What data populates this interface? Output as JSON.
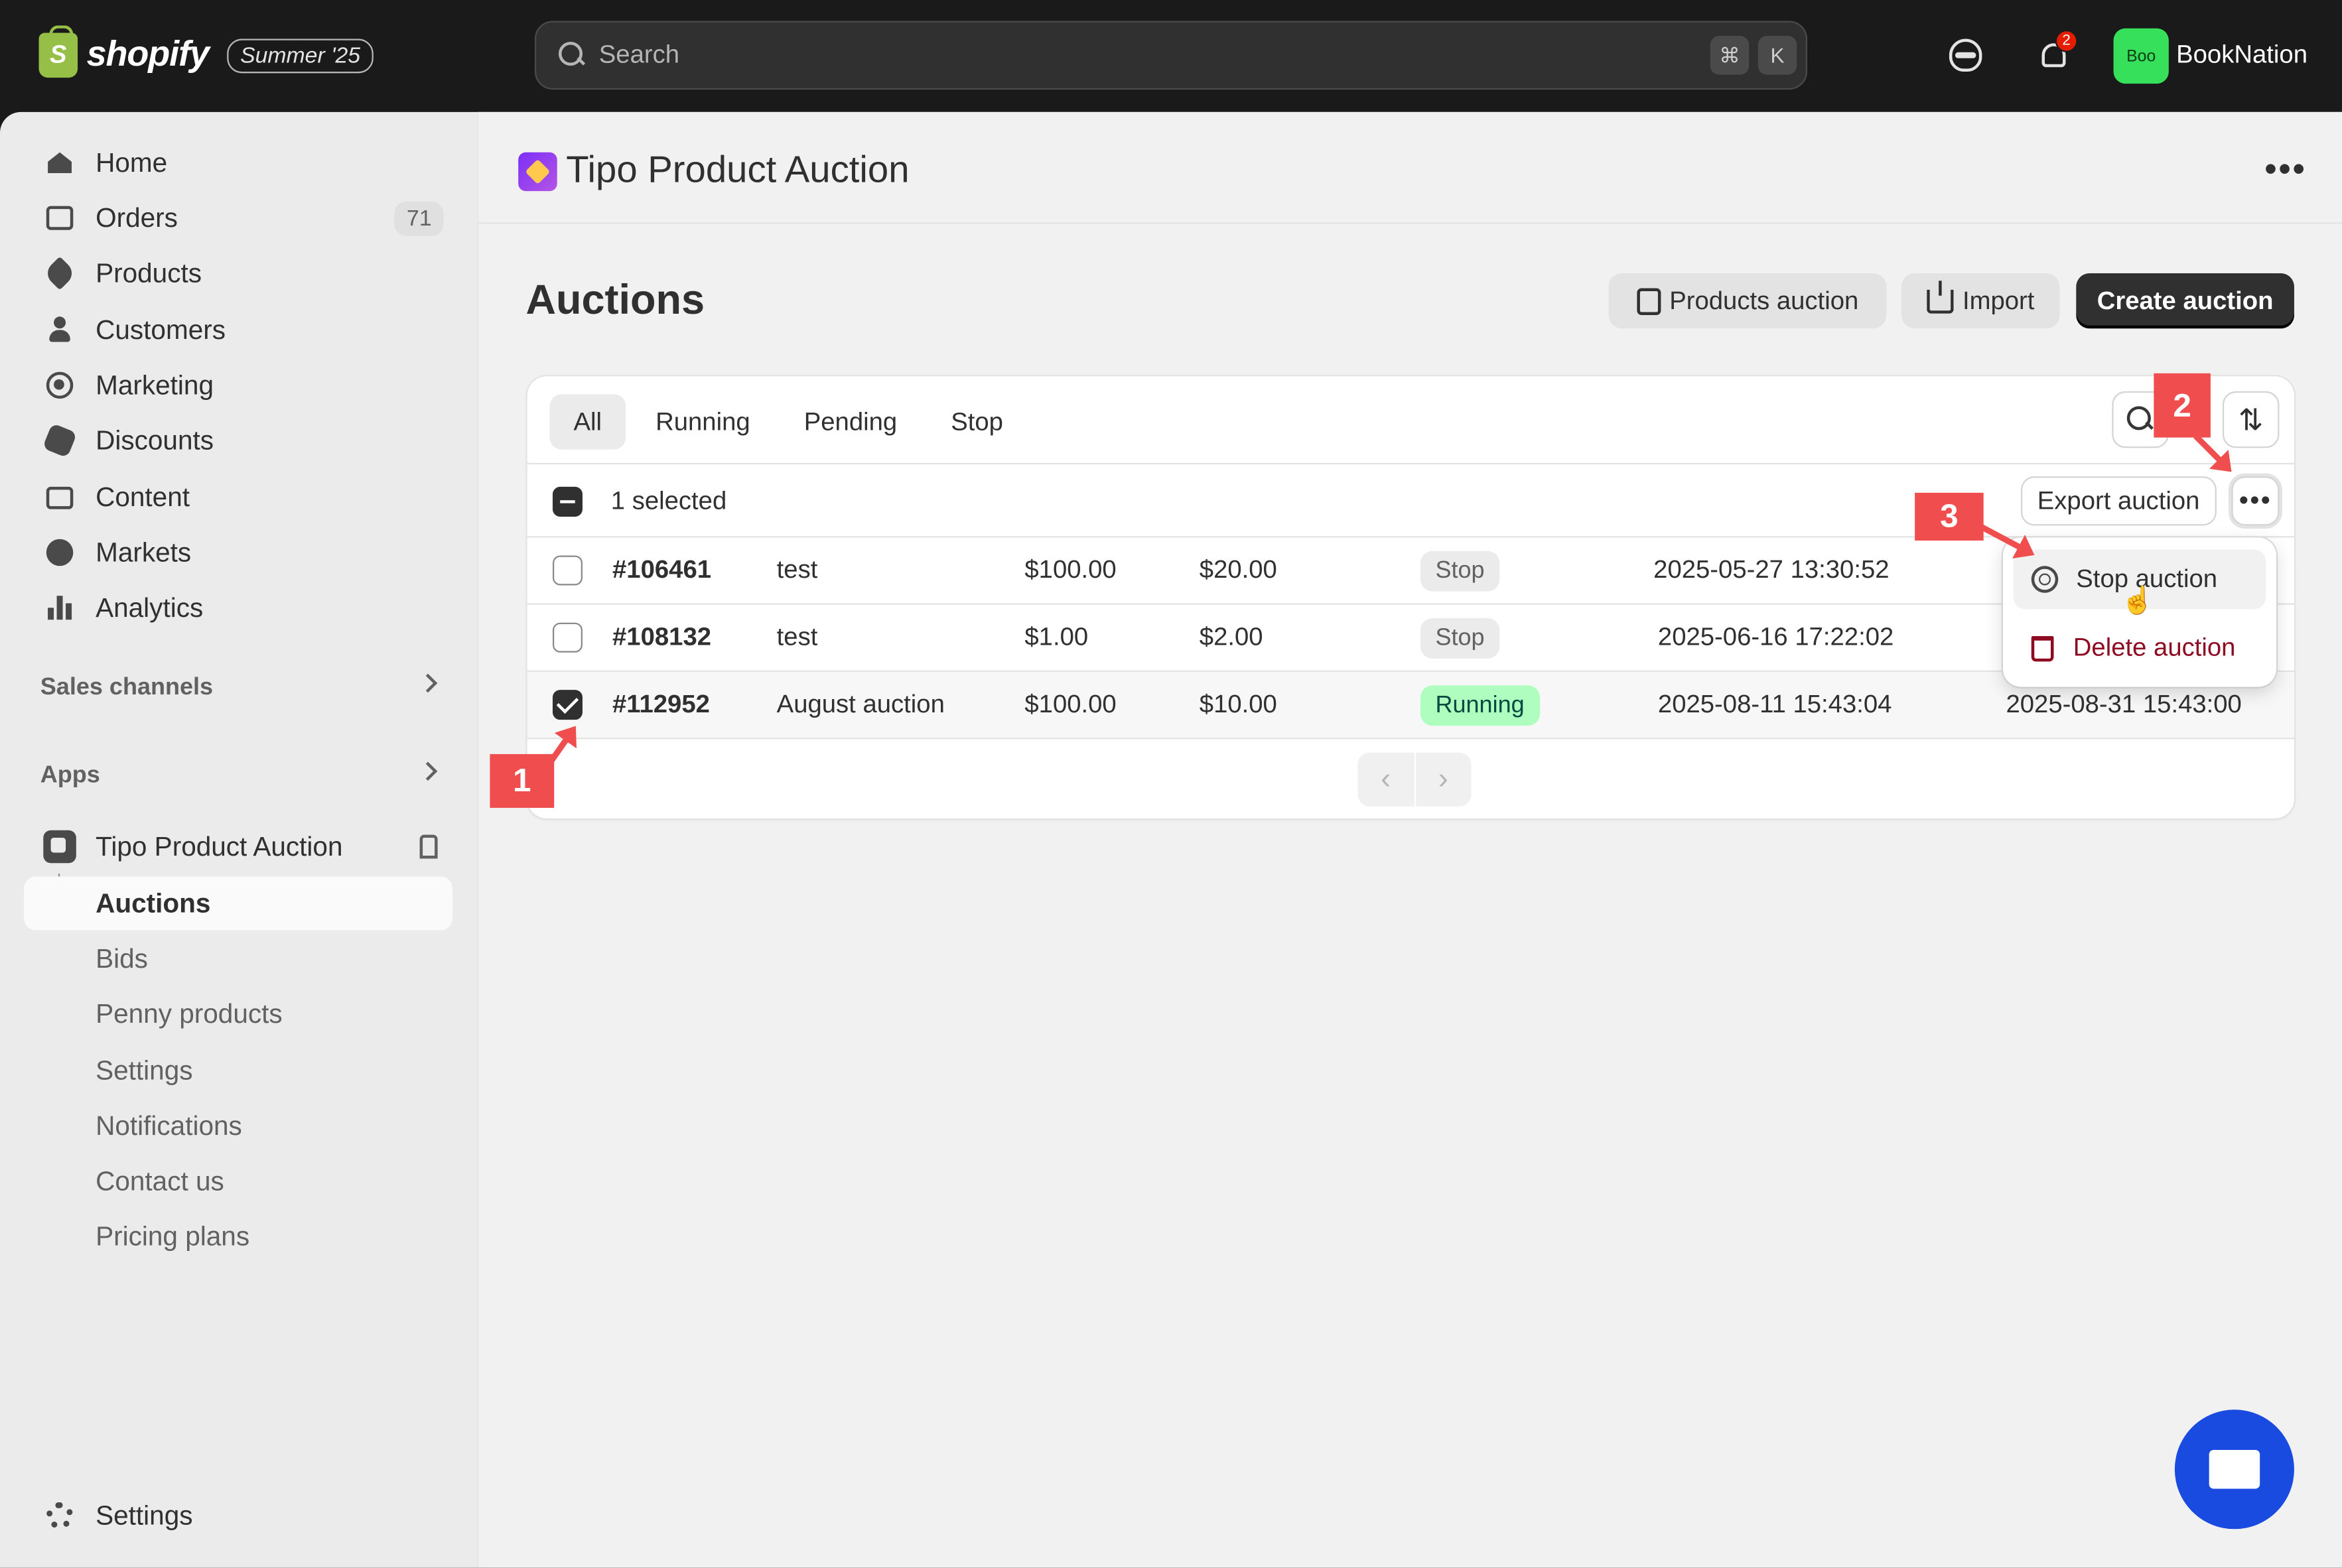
{
  "topbar": {
    "logo_text": "shopify",
    "edition": "Summer '25",
    "search_placeholder": "Search",
    "shortcut_cmd": "⌘",
    "shortcut_key": "K",
    "notification_count": "2",
    "store_avatar": "Boo",
    "store_name": "BookNation"
  },
  "sidebar": {
    "items": [
      {
        "label": "Home",
        "icon": "home-icon"
      },
      {
        "label": "Orders",
        "icon": "inbox-icon",
        "count": "71"
      },
      {
        "label": "Products",
        "icon": "tag-icon"
      },
      {
        "label": "Customers",
        "icon": "person-icon"
      },
      {
        "label": "Marketing",
        "icon": "target-icon"
      },
      {
        "label": "Discounts",
        "icon": "discount-icon"
      },
      {
        "label": "Content",
        "icon": "content-icon"
      },
      {
        "label": "Markets",
        "icon": "globe-icon"
      },
      {
        "label": "Analytics",
        "icon": "bar-chart-icon"
      }
    ],
    "sales_channels": "Sales channels",
    "apps": "Apps",
    "app_name": "Tipo Product Auction",
    "app_subitems": [
      "Auctions",
      "Bids",
      "Penny products",
      "Settings",
      "Notifications",
      "Contact us",
      "Pricing plans"
    ],
    "settings": "Settings"
  },
  "app_header": {
    "title": "Tipo Product Auction",
    "more": "•••"
  },
  "page": {
    "title": "Auctions",
    "btn_products_auction": "Products auction",
    "btn_import": "Import",
    "btn_create": "Create auction"
  },
  "table": {
    "tabs": [
      "All",
      "Running",
      "Pending",
      "Stop"
    ],
    "selected_text": "1 selected",
    "export_button": "Export auction",
    "more_button": "•••",
    "rows": [
      {
        "id": "#106461",
        "name": "test",
        "price": "$100.00",
        "step": "$20.00",
        "status": "Stop",
        "start": "2025-05-27 13:30:52",
        "end": "",
        "checked": false
      },
      {
        "id": "#108132",
        "name": "test",
        "price": "$1.00",
        "step": "$2.00",
        "status": "Stop",
        "start": "2025-06-16 17:22:02",
        "end": "",
        "checked": false
      },
      {
        "id": "#112952",
        "name": "August auction",
        "price": "$100.00",
        "step": "$10.00",
        "status": "Running",
        "start": "2025-08-11 15:43:04",
        "end": "2025-08-31 15:43:00",
        "checked": true
      }
    ],
    "pager_prev": "‹",
    "pager_next": "›"
  },
  "dropdown": {
    "stop": "Stop auction",
    "delete": "Delete auction"
  },
  "callouts": [
    "1",
    "2",
    "3"
  ],
  "colors": {
    "topbar": "#1a1a1a",
    "primary_button": "#303030",
    "running_badge": "#affebf",
    "danger": "#8e0b21",
    "callout": "#f04e4e",
    "chat": "#1a4be0"
  }
}
